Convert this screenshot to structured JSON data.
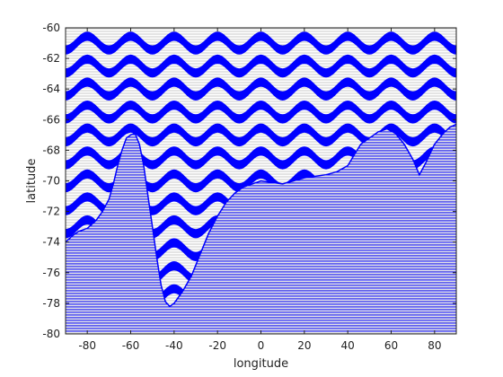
{
  "chart_data": {
    "type": "heatmap",
    "title": "",
    "xlabel": "longitude",
    "ylabel": "latitude",
    "xlim": [
      -90,
      90
    ],
    "ylim": [
      -80,
      -60
    ],
    "xticks": [
      -80,
      -60,
      -40,
      -20,
      0,
      20,
      40,
      60,
      80
    ],
    "yticks": [
      -80,
      -78,
      -76,
      -74,
      -72,
      -70,
      -68,
      -66,
      -64,
      -62,
      -60
    ],
    "grid": false,
    "legend": "none",
    "colors": {
      "fill": "#0000ff",
      "hatch": "#c8c8c8",
      "background": "#ffffff",
      "axis": "#222222"
    },
    "wave_bands": {
      "center_latitudes": [
        -61,
        -62.5,
        -64,
        -65.5,
        -67,
        -68.5,
        -70,
        -71.5,
        -73,
        -74.5,
        -76,
        -77.5
      ],
      "amplitude_deg_lat": 0.45,
      "wavelength_deg_lon": 20,
      "band_thickness_deg_lat": 0.6
    },
    "coastline": [
      [
        -90,
        -74.0
      ],
      [
        -87,
        -73.6
      ],
      [
        -84,
        -73.3
      ],
      [
        -80,
        -73.1
      ],
      [
        -76,
        -72.6
      ],
      [
        -73,
        -72.0
      ],
      [
        -70,
        -71.2
      ],
      [
        -68,
        -70.2
      ],
      [
        -66,
        -69.0
      ],
      [
        -64,
        -68.0
      ],
      [
        -62,
        -67.2
      ],
      [
        -60,
        -67.0
      ],
      [
        -58,
        -66.9
      ],
      [
        -56,
        -67.6
      ],
      [
        -54,
        -69.0
      ],
      [
        -52,
        -71.0
      ],
      [
        -50,
        -73.0
      ],
      [
        -48,
        -75.0
      ],
      [
        -46,
        -76.8
      ],
      [
        -44,
        -77.9
      ],
      [
        -42,
        -78.2
      ],
      [
        -40,
        -78.0
      ],
      [
        -36,
        -77.2
      ],
      [
        -32,
        -76.2
      ],
      [
        -28,
        -74.8
      ],
      [
        -24,
        -73.4
      ],
      [
        -20,
        -72.3
      ],
      [
        -16,
        -71.4
      ],
      [
        -12,
        -70.8
      ],
      [
        -8,
        -70.4
      ],
      [
        -4,
        -70.2
      ],
      [
        0,
        -70.0
      ],
      [
        5,
        -70.1
      ],
      [
        10,
        -70.2
      ],
      [
        15,
        -70.0
      ],
      [
        20,
        -69.8
      ],
      [
        25,
        -69.7
      ],
      [
        30,
        -69.6
      ],
      [
        35,
        -69.4
      ],
      [
        40,
        -69.0
      ],
      [
        43,
        -68.3
      ],
      [
        46,
        -67.6
      ],
      [
        50,
        -67.2
      ],
      [
        54,
        -66.8
      ],
      [
        58,
        -66.6
      ],
      [
        62,
        -66.9
      ],
      [
        66,
        -67.6
      ],
      [
        70,
        -68.6
      ],
      [
        73,
        -69.6
      ],
      [
        76,
        -68.8
      ],
      [
        80,
        -67.6
      ],
      [
        84,
        -66.9
      ],
      [
        87,
        -66.5
      ],
      [
        90,
        -66.3
      ]
    ]
  }
}
